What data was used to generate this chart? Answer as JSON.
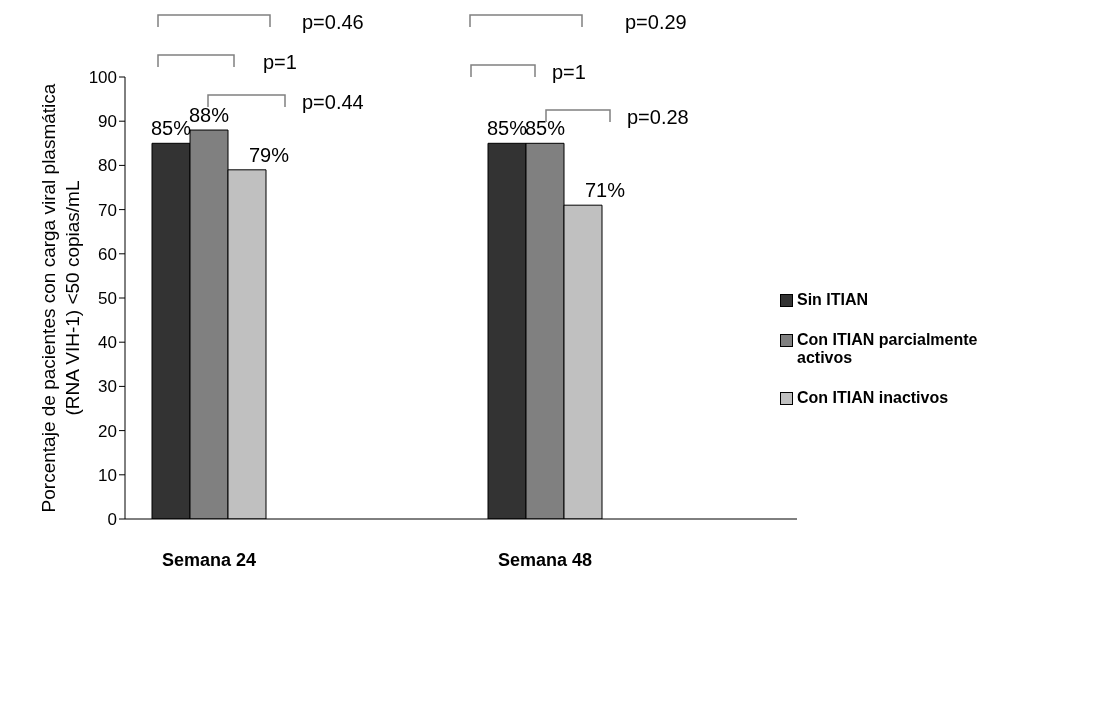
{
  "chart_data": {
    "type": "bar",
    "ylabel": "Porcentaje de pacientes con carga viral plasmática\n(RNA VIH-1) <50 copias/mL",
    "categories": [
      "Semana 24",
      null,
      "Semana 48",
      null
    ],
    "series": [
      {
        "name": "Sin ITIAN",
        "color": "#333333",
        "values": [
          85,
          null,
          85,
          null
        ],
        "value_labels": [
          "85%",
          null,
          "85%",
          null
        ]
      },
      {
        "name": "Con ITIAN parcialmente activos",
        "color": "#808080",
        "values": [
          88,
          null,
          85,
          null
        ],
        "value_labels": [
          "88%",
          null,
          "85%",
          null
        ]
      },
      {
        "name": "Con ITIAN inactivos",
        "color": "#c0c0c0",
        "values": [
          79,
          null,
          71,
          null
        ],
        "value_labels": [
          "79%",
          null,
          "71%",
          null
        ]
      }
    ],
    "ylim": [
      0,
      100
    ],
    "yticks": [
      0,
      10,
      20,
      30,
      40,
      50,
      60,
      70,
      80,
      90,
      100
    ],
    "grid": false,
    "legend": "right",
    "annotations": [
      "p=0.46",
      "p=1",
      "p=0.44",
      "p=0.29",
      "p=1",
      "p=0.28"
    ]
  }
}
